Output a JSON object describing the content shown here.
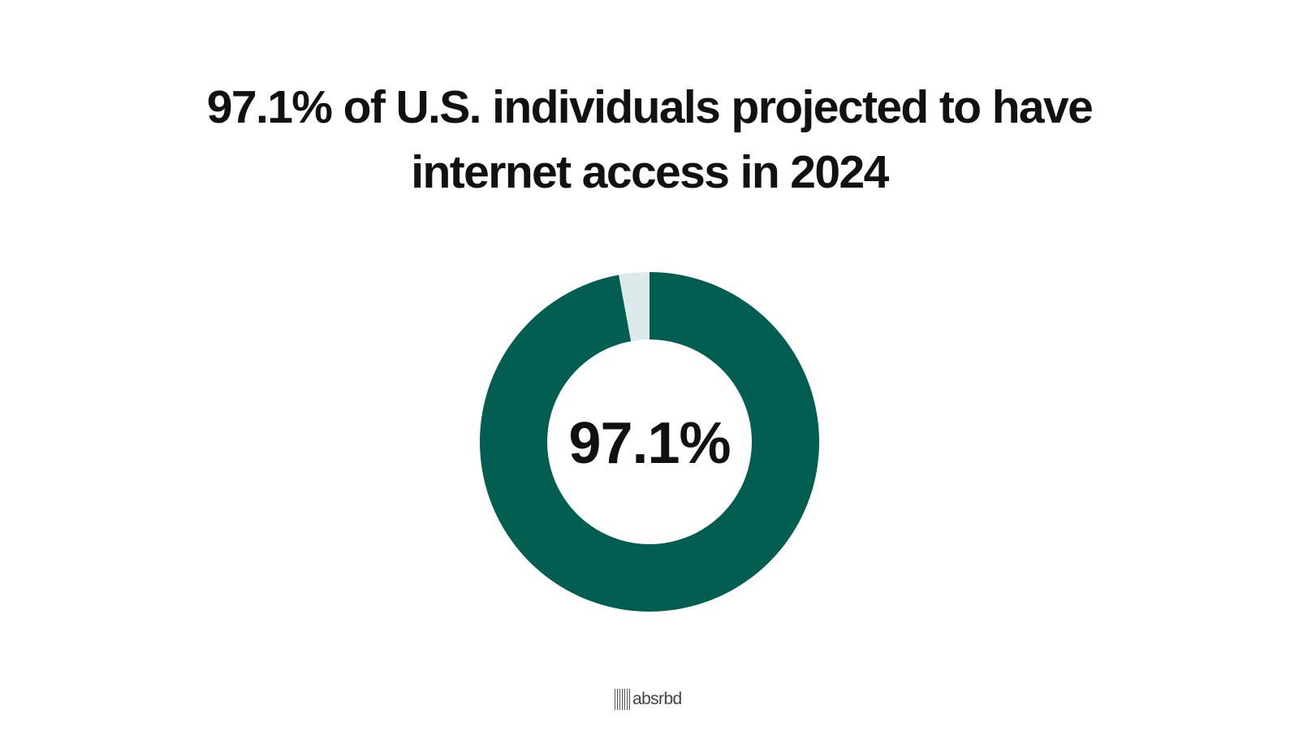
{
  "title": {
    "line1": "97.1% of U.S. individuals projected to have",
    "line2": "internet access in 2024"
  },
  "chart_data": {
    "type": "pie",
    "variant": "donut",
    "center_label": "97.1%",
    "slices": [
      {
        "value": 97.1,
        "color": "#025E50"
      },
      {
        "value": 2.9,
        "color": "#DCEBEA"
      }
    ]
  },
  "colors": {
    "background": "#FFFFFF",
    "primary": "#025E50",
    "remainder": "#DCEBEA",
    "text": "#111111"
  },
  "logo": {
    "text": "absrbd"
  }
}
